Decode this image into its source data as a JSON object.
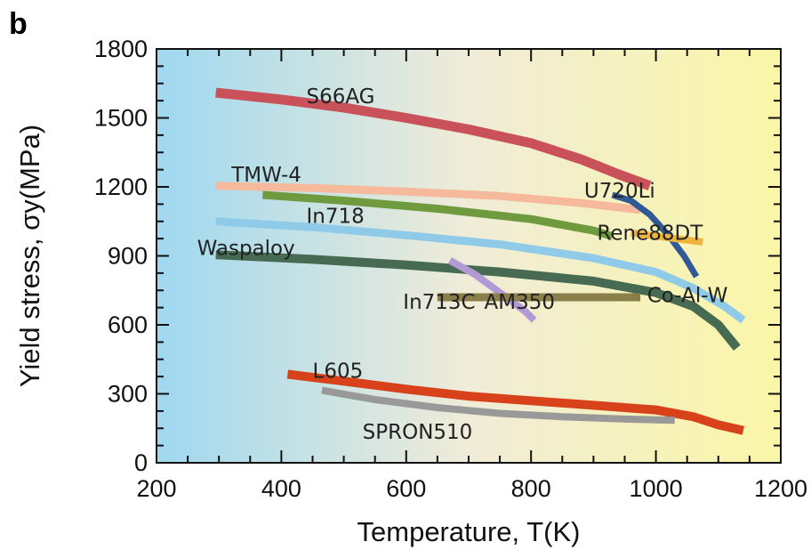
{
  "panel_letter": "b",
  "chart_data": {
    "type": "line",
    "xlabel": "Temperature, T(K)",
    "ylabel": "Yield stress, σy(MPa)",
    "xlim": [
      200,
      1200
    ],
    "ylim": [
      0,
      1800
    ],
    "xticks": [
      200,
      400,
      600,
      800,
      1000,
      1200
    ],
    "yticks": [
      0,
      300,
      600,
      900,
      1200,
      1500,
      1800
    ],
    "grid": false,
    "legend": "inline labels",
    "background": {
      "left": "#9fd8f0",
      "middle": "#f0ecd8",
      "right": "#fbf6a6"
    },
    "series": [
      {
        "name": "S66AG",
        "color": "#c9525a",
        "width": 11,
        "x": [
          295,
          400,
          500,
          600,
          700,
          800,
          880,
          940,
          990
        ],
        "y": [
          1610,
          1580,
          1545,
          1500,
          1450,
          1390,
          1320,
          1255,
          1205
        ]
      },
      {
        "name": "TMW-4",
        "color": "#f6b99c",
        "width": 9,
        "x": [
          295,
          450,
          600,
          750,
          880,
          975
        ],
        "y": [
          1205,
          1195,
          1180,
          1160,
          1130,
          1100
        ]
      },
      {
        "name": "In718",
        "color": "#6f9a3e",
        "width": 9,
        "x": [
          370,
          500,
          650,
          800,
          900,
          930
        ],
        "y": [
          1165,
          1140,
          1105,
          1060,
          1010,
          985
        ]
      },
      {
        "name": "U720Li",
        "color": "#2f5a96",
        "width": 7,
        "x": [
          930,
          960,
          990,
          1020,
          1045,
          1065
        ],
        "y": [
          1165,
          1140,
          1080,
          990,
          900,
          810
        ]
      },
      {
        "name": "Rene88DT",
        "color": "#f0b43c",
        "width": 8,
        "x": [
          960,
          1075
        ],
        "y": [
          1000,
          960
        ]
      },
      {
        "name": "Waspaloy",
        "color": "#8fcbe8",
        "width": 9,
        "x": [
          295,
          450,
          600,
          750,
          900,
          1000,
          1060,
          1110,
          1140
        ],
        "y": [
          1050,
          1025,
          990,
          950,
          890,
          830,
          760,
          680,
          620
        ]
      },
      {
        "name": "",
        "color": "#466a52",
        "width": 10,
        "x": [
          295,
          450,
          600,
          750,
          900,
          1000,
          1060,
          1100,
          1130
        ],
        "y": [
          905,
          885,
          860,
          830,
          790,
          740,
          680,
          600,
          500
        ]
      },
      {
        "name": "AM350",
        "color": "#b39ad6",
        "width": 8,
        "x": [
          670,
          710,
          750,
          790,
          805
        ],
        "y": [
          880,
          820,
          740,
          660,
          620
        ]
      },
      {
        "name": "In713C",
        "color": "#8a7e4a",
        "width": 9,
        "x": [
          650,
          975
        ],
        "y": [
          720,
          720
        ]
      },
      {
        "name": "L605",
        "color": "#d8421a",
        "width": 10,
        "x": [
          410,
          500,
          600,
          700,
          800,
          900,
          1000,
          1060,
          1100,
          1140
        ],
        "y": [
          385,
          355,
          320,
          290,
          270,
          250,
          230,
          200,
          165,
          140
        ]
      },
      {
        "name": "SPRON510",
        "color": "#999999",
        "width": 8,
        "x": [
          465,
          550,
          650,
          750,
          850,
          950,
          1030
        ],
        "y": [
          315,
          275,
          240,
          215,
          200,
          190,
          185
        ]
      }
    ],
    "annotations": [
      {
        "text": "S66AG",
        "x": 440,
        "y": 1595
      },
      {
        "text": "TMW-4",
        "x": 320,
        "y": 1255
      },
      {
        "text": "U720Li",
        "x": 885,
        "y": 1185
      },
      {
        "text": "In718",
        "x": 440,
        "y": 1075
      },
      {
        "text": "Rene88DT",
        "x": 1075,
        "y": 1000
      },
      {
        "text": "Waspaloy",
        "x": 265,
        "y": 935
      },
      {
        "text": "In713C",
        "x": 595,
        "y": 700
      },
      {
        "text": "AM350",
        "x": 725,
        "y": 700
      },
      {
        "text": "Co-Al-W",
        "x": 1115,
        "y": 730
      },
      {
        "text": "L605",
        "x": 450,
        "y": 400
      },
      {
        "text": "SPRON510",
        "x": 530,
        "y": 135
      }
    ]
  }
}
